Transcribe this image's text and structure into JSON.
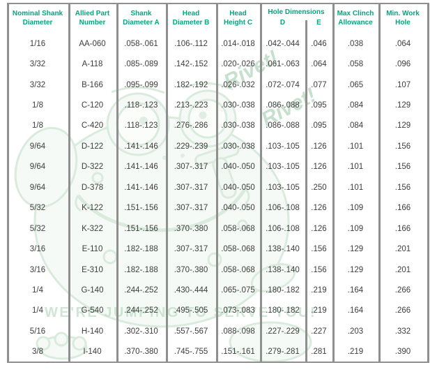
{
  "table": {
    "headers": {
      "nominal_shank": [
        "Nominal Shank",
        "Diameter"
      ],
      "allied_part": [
        "Allied Part",
        "Number"
      ],
      "shank_diameter": [
        "Shank",
        "Diameter A"
      ],
      "head_diameter": [
        "Head",
        "Diameter B"
      ],
      "head_height": [
        "Head",
        "Height C"
      ],
      "hole_dimensions": {
        "label": "Hole Dimensions",
        "sub": [
          "D",
          "E"
        ]
      },
      "max_clinch": [
        "Max Clinch",
        "Allowance"
      ],
      "min_work_hole": [
        "Min. Work",
        "Hole"
      ]
    },
    "rows": [
      [
        "1/16",
        "AA-060",
        ".058-.061",
        ".106-.112",
        ".014-.018",
        ".042-.044",
        ".046",
        ".038",
        ".064"
      ],
      [
        "3/32",
        "A-118",
        ".085-.089",
        ".142-.152",
        ".020-.026",
        ".061-.063",
        ".064",
        ".058",
        ".096"
      ],
      [
        "3/32",
        "B-166",
        ".095-.099",
        ".182-.192",
        ".026-.032",
        ".072-.074",
        ".077",
        ".065",
        ".107"
      ],
      [
        "1/8",
        "C-120",
        ".118-.123",
        ".213-.223",
        ".030-.038",
        ".086-.088",
        ".095",
        ".084",
        ".129"
      ],
      [
        "1/8",
        "C-420",
        ".118-.123",
        ".276-.286",
        ".030-.038",
        ".086-.088",
        ".095",
        ".084",
        ".129"
      ],
      [
        "9/64",
        "D-122",
        ".141-.146",
        ".229-.239",
        ".030-.038",
        ".103-.105",
        ".126",
        ".101",
        ".156"
      ],
      [
        "9/64",
        "D-322",
        ".141-.146",
        ".307-.317",
        ".040-.050",
        ".103-.105",
        ".126",
        ".101",
        ".156"
      ],
      [
        "9/64",
        "D-378",
        ".141-.146",
        ".307-.317",
        ".040-.050",
        ".103-.105",
        ".250",
        ".101",
        ".156"
      ],
      [
        "5/32",
        "K-122",
        ".151-.156",
        ".307-.317",
        ".040-.050",
        ".106-.108",
        ".126",
        ".109",
        ".166"
      ],
      [
        "5/32",
        "K-322",
        ".151-.156",
        ".370-.380",
        ".058-.068",
        ".106-.108",
        ".126",
        ".109",
        ".166"
      ],
      [
        "3/16",
        "E-110",
        ".182-.188",
        ".307-.317",
        ".058-.068",
        ".138-.140",
        ".156",
        ".129",
        ".201"
      ],
      [
        "3/16",
        "E-310",
        ".182-.188",
        ".370-.380",
        ".058-.068",
        ".138-.140",
        ".156",
        ".129",
        ".201"
      ],
      [
        "1/4",
        "G-140",
        ".244-.252",
        ".430-.444",
        ".065-.075",
        ".180-.182",
        ".219",
        ".164",
        ".266"
      ],
      [
        "1/4",
        "G-540",
        ".244-.252",
        ".495-.505",
        ".073-.083",
        ".180-.182",
        ".219",
        ".164",
        ".266"
      ],
      [
        "5/16",
        "H-140",
        ".302-.310",
        ".557-.567",
        ".088-.098",
        ".227-.229",
        ".227",
        ".203",
        ".332"
      ],
      [
        "3/8",
        "I-140",
        ".370-.380",
        ".745-.755",
        ".151-.161",
        ".279-.281",
        ".281",
        ".219",
        ".390"
      ]
    ]
  },
  "watermark": {
    "rivet1": "Rivet!",
    "rivet2": "Rivet!",
    "tagline": "WE'RE JUMPING TO SERVE YOU!"
  },
  "colors": {
    "header_text": "#00a87e",
    "grid_line": "#8f8f8f",
    "data_text": "#3c3c3c",
    "watermark_green": "#bedcc5"
  }
}
